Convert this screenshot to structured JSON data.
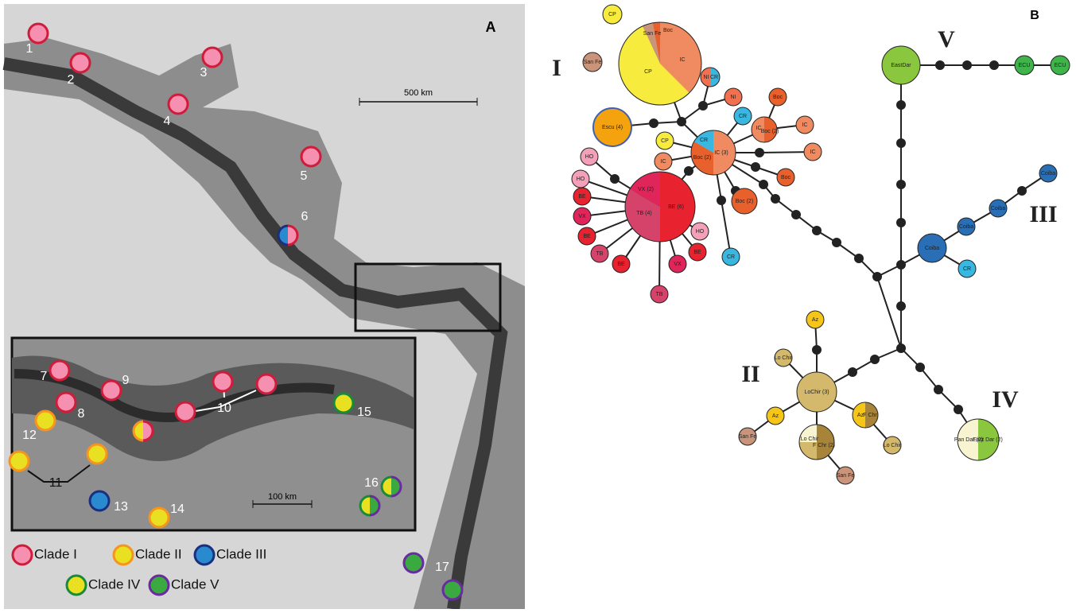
{
  "panel_a": {
    "label": "A",
    "scale_bars": [
      "500 km",
      "100 km"
    ],
    "site_labels": [
      "1",
      "2",
      "3",
      "4",
      "5",
      "6",
      "7",
      "8",
      "9",
      "10",
      "11",
      "12",
      "13",
      "14",
      "15",
      "16",
      "17"
    ],
    "legend": [
      "Clade I",
      "Clade II",
      "Clade III",
      "Clade IV",
      "Clade V"
    ]
  },
  "panel_b": {
    "label": "B",
    "clade_labels": [
      "I",
      "V",
      "III",
      "II",
      "IV"
    ],
    "haplotypes": [
      {
        "labels": [
          "CP"
        ]
      },
      {
        "labels": [
          "San Fe"
        ]
      },
      {
        "labels": [
          "CP",
          "IC",
          "San Fe",
          "Boc"
        ]
      },
      {
        "labels": [
          "Escu (4)"
        ]
      },
      {
        "labels": [
          "NI",
          "CR"
        ]
      },
      {
        "labels": [
          "NI"
        ]
      },
      {
        "labels": [
          "CR"
        ]
      },
      {
        "labels": [
          "Boc"
        ]
      },
      {
        "labels": [
          "IC",
          "Boc (2)"
        ]
      },
      {
        "labels": [
          "IC"
        ]
      },
      {
        "labels": [
          "IC"
        ]
      },
      {
        "labels": [
          "Boc"
        ]
      },
      {
        "labels": [
          "Boc (2)"
        ]
      },
      {
        "labels": [
          "CR"
        ]
      },
      {
        "labels": [
          "CR",
          "Boc (2)",
          "IC (3)"
        ]
      },
      {
        "labels": [
          "CP"
        ]
      },
      {
        "labels": [
          "IC"
        ]
      },
      {
        "labels": [
          "HO"
        ]
      },
      {
        "labels": [
          "HO"
        ]
      },
      {
        "labels": [
          "VX (2)",
          "TB (4)",
          "BE (6)"
        ]
      },
      {
        "labels": [
          "BE"
        ]
      },
      {
        "labels": [
          "VX"
        ]
      },
      {
        "labels": [
          "BE"
        ]
      },
      {
        "labels": [
          "TB"
        ]
      },
      {
        "labels": [
          "BE"
        ]
      },
      {
        "labels": [
          "TB"
        ]
      },
      {
        "labels": [
          "VX"
        ]
      },
      {
        "labels": [
          "BE"
        ]
      },
      {
        "labels": [
          "HO"
        ]
      },
      {
        "labels": [
          "EastDar"
        ]
      },
      {
        "labels": [
          "ECU"
        ]
      },
      {
        "labels": [
          "ECU"
        ]
      },
      {
        "labels": [
          "Coiba"
        ]
      },
      {
        "labels": [
          "CR"
        ]
      },
      {
        "labels": [
          "Coiba"
        ]
      },
      {
        "labels": [
          "Coiba"
        ]
      },
      {
        "labels": [
          "Coiba"
        ]
      },
      {
        "labels": [
          "Az"
        ]
      },
      {
        "labels": [
          "LoChir (3)"
        ]
      },
      {
        "labels": [
          "Lo Chir"
        ]
      },
      {
        "labels": [
          "Az"
        ]
      },
      {
        "labels": [
          "San Fe"
        ]
      },
      {
        "labels": [
          "Az",
          "F Chr"
        ]
      },
      {
        "labels": [
          "Lo Chir"
        ]
      },
      {
        "labels": [
          "Lo Chir",
          "F Chr (2)"
        ]
      },
      {
        "labels": [
          "San Fe"
        ]
      },
      {
        "labels": [
          "Pan Dar (2)",
          "East Dar (2)"
        ]
      }
    ]
  }
}
